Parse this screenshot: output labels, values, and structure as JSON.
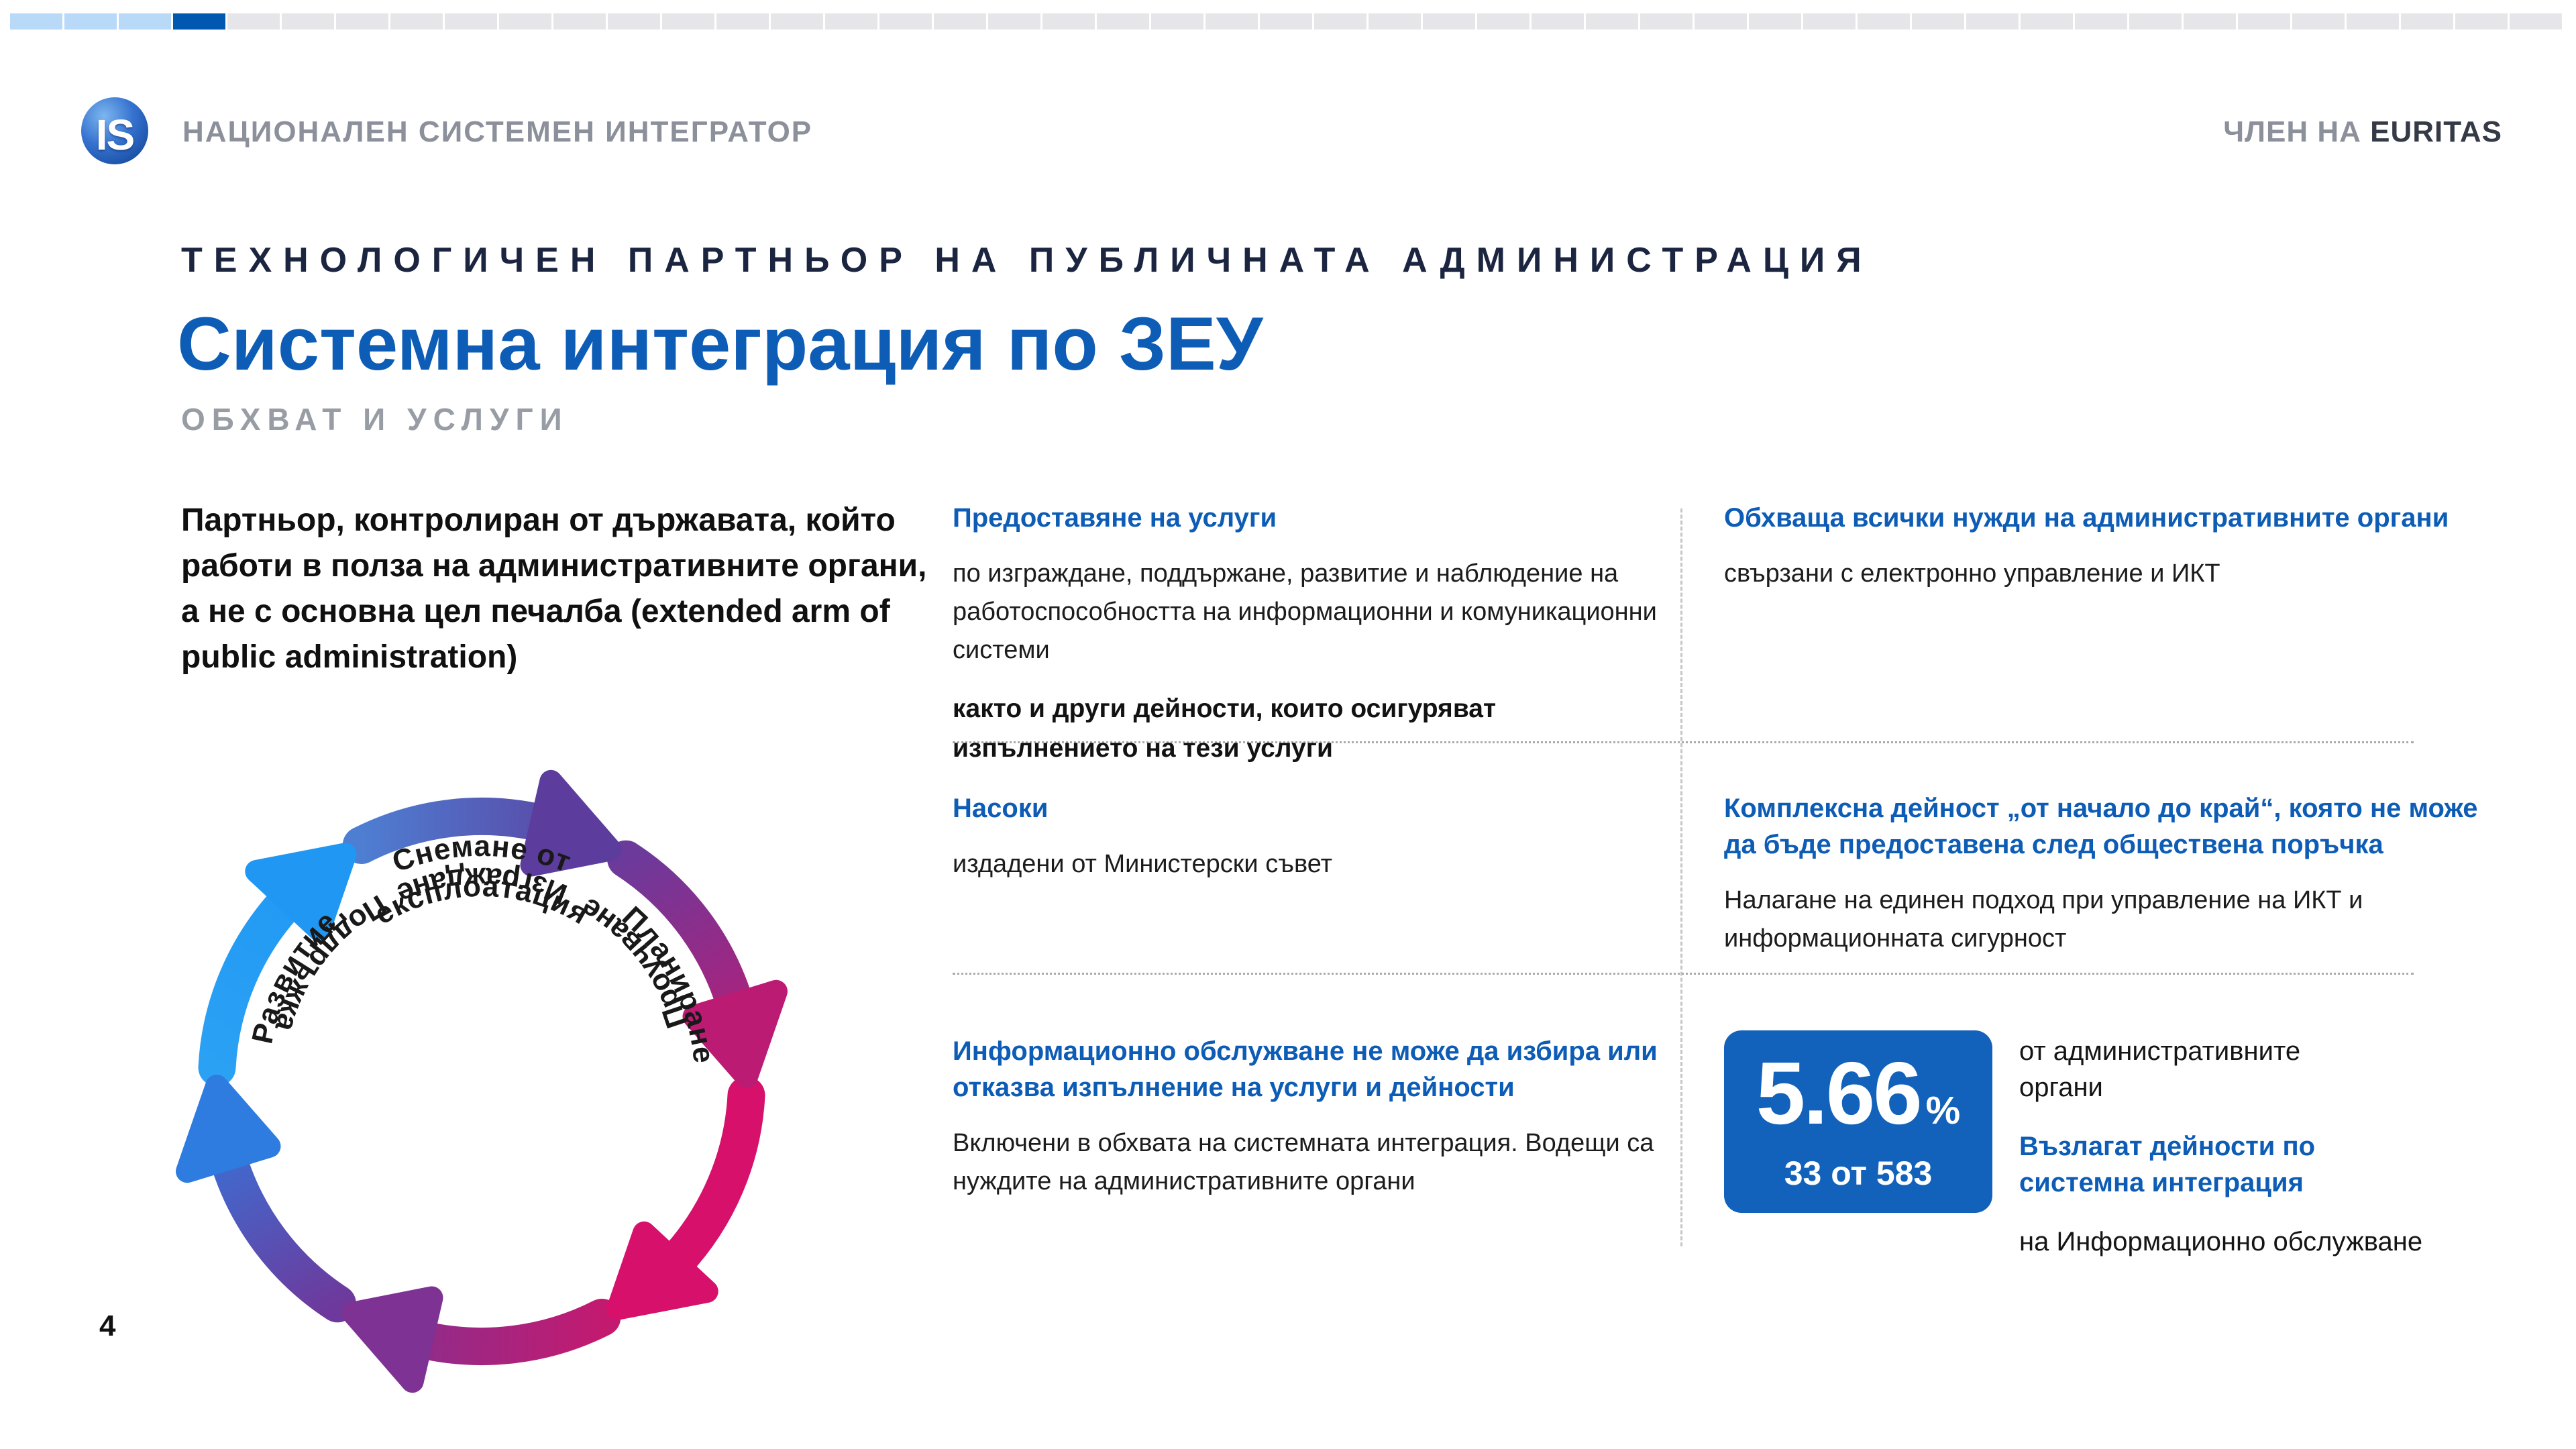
{
  "slide": {
    "page_number": "4",
    "top_bar": {
      "total_segments": 47,
      "completed_segments": 3,
      "active_segment_index": 3,
      "completed_color": "#b9d9f8",
      "active_color": "#0058b0",
      "remaining_color": "#e6e6ea"
    },
    "header": {
      "logo_text": "IS",
      "org_name": "НАЦИОНАЛЕН СИСТЕМЕН ИНТЕГРАТОР",
      "member_label": "ЧЛЕН НА ",
      "member_org": "EURITAS"
    },
    "title_block": {
      "kicker": "ТЕХНОЛОГИЧЕН ПАРТНЬОР НА ПУБЛИЧНАТА АДМИНИСТРАЦИЯ",
      "title": "Системна интеграция по ЗЕУ",
      "subtitle": "ОБХВАТ И УСЛУГИ",
      "accent_color": "#0d5cb5"
    },
    "intro": "Партньор, контролиран от държавата, който работи в полза на административните органи, а не с основна цел печалба (extended arm of public administration)",
    "diagram": {
      "labels": {
        "top_line1": "Снемане от",
        "top_line2": "експлоатация",
        "right": "Планиране",
        "lower_right": "Проучване",
        "bottom": "Изграждане",
        "lower_left": "Поддръжка",
        "left": "Развитие"
      },
      "arrows": [
        {
          "name": "top",
          "from": "#4e7ed2",
          "to": "#5c3d9d"
        },
        {
          "name": "upper-right",
          "from": "#6c3a9b",
          "to": "#bc1b73"
        },
        {
          "name": "lower-right",
          "from": "#d6106b",
          "to": "#d6106b"
        },
        {
          "name": "bottom",
          "from": "#c31a70",
          "to": "#7e3293"
        },
        {
          "name": "lower-left",
          "from": "#6e399c",
          "to": "#2f7ce0"
        },
        {
          "name": "upper-left",
          "from": "#2ba1f4",
          "to": "#1f97f3"
        }
      ]
    },
    "grid": {
      "r1c1": {
        "heading": "Предоставяне на услуги",
        "body": "по изграждане, поддържане, развитие и наблюдение на работоспособността на информационни и комуникационни системи",
        "body_bold": "както и други дейности, които осигуряват изпълнението на тези услуги"
      },
      "r1c2": {
        "heading": "Обхваща всички нужди на административните органи",
        "body": "свързани с електронно управление и ИКТ"
      },
      "r2c1": {
        "heading": "Насоки",
        "body": "издадени от Министерски съвет"
      },
      "r2c2": {
        "heading": "Комплексна дейност „от начало до край“, която не може да бъде предоставена след обществена поръчка",
        "body": "Налагане на единен подход при управление на ИКТ и информационната сигурност"
      },
      "r3c1": {
        "heading": "Информационно обслужване не може да избира или отказва изпълнение на услуги и дейности",
        "body": "Включени в обхвата на системната интеграция. Водещи са нуждите на административните органи"
      }
    },
    "stat": {
      "value": "5.66",
      "unit": "%",
      "caption": "33 от 583",
      "box_color": "#1261ba",
      "side_line1": "от административните\nоргани",
      "side_highlight": "Възлагат дейности по\nсистемна интеграция",
      "side_line3": "на Информационно обслужване"
    }
  }
}
